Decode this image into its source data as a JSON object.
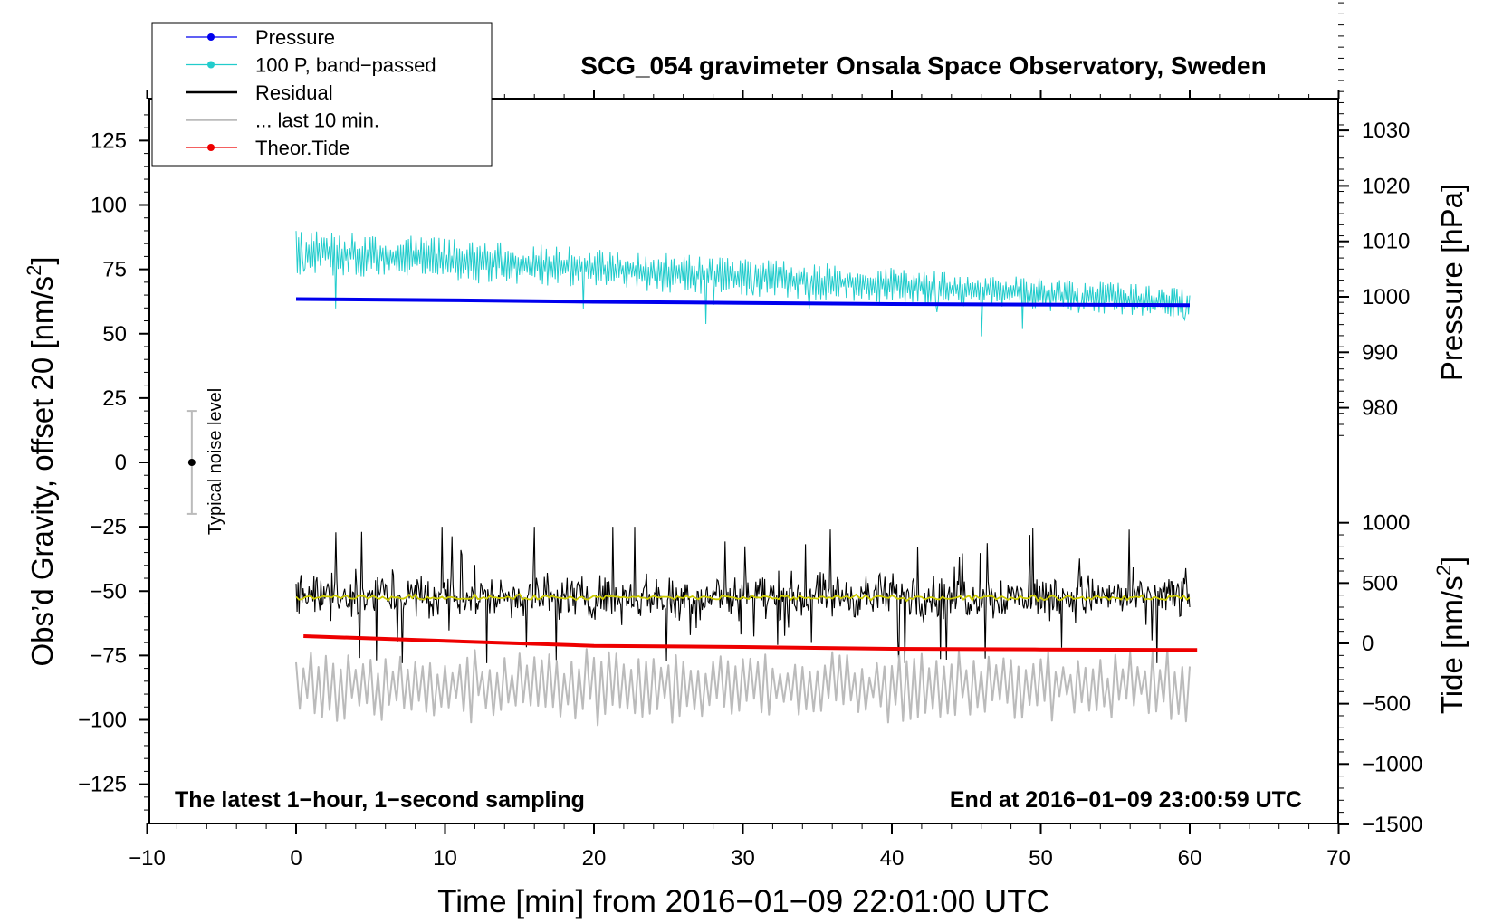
{
  "chart_data": {
    "type": "line",
    "title": "SCG_054 gravimeter Onsala Space Observatory, Sweden",
    "xlabel": "Time [min] from 2016−01−09 22:01:00 UTC",
    "ylabel_left": "Obs’d Gravity, offset 20 [nm/s",
    "ylabel_left_sup": "2",
    "ylabel_left_end": "]",
    "ylabel_right_pressure": "Pressure [hPa]",
    "ylabel_right_tide": "Tide [nm/s",
    "ylabel_right_tide_sup": "2",
    "ylabel_right_tide_end": "]",
    "annotation_left": "The latest 1−hour, 1−second sampling",
    "annotation_right": "End at 2016−01−09 23:00:59 UTC",
    "noise_label": "Typical noise level",
    "noise_bar": {
      "x": -7,
      "center": 0,
      "low": -20,
      "high": 20
    },
    "xlim": [
      -10,
      70
    ],
    "ylim_left": [
      -140,
      140
    ],
    "ylim_pressure_view": [
      973.6,
      1055.3
    ],
    "ylim_tide_view": [
      -1500,
      1500
    ],
    "x_ticks": [
      -10,
      0,
      10,
      20,
      30,
      40,
      50,
      60,
      70
    ],
    "x_tick_labels": [
      "−10",
      "0",
      "10",
      "20",
      "30",
      "40",
      "50",
      "60",
      "70"
    ],
    "y_left_ticks": [
      125,
      100,
      75,
      50,
      25,
      0,
      -25,
      -50,
      -75,
      -100,
      -125
    ],
    "y_left_tick_labels": [
      "125",
      "100",
      "75",
      "50",
      "25",
      "0",
      "−25",
      "−50",
      "−75",
      "−100",
      "−125"
    ],
    "y_pressure_ticks": [
      1030,
      1020,
      1010,
      1000,
      990,
      980
    ],
    "y_pressure_tick_labels": [
      "1030",
      "1020",
      "1010",
      "1000",
      "990",
      "980"
    ],
    "y_tide_ticks": [
      1000,
      500,
      0,
      -500,
      -1000,
      -1500
    ],
    "y_tide_tick_labels": [
      "1000",
      "500",
      "0",
      "−500",
      "−1000",
      "−1500"
    ],
    "legend": {
      "placement": "top-left",
      "entries": [
        {
          "label": "Pressure",
          "color": "#0000ee",
          "marker": true
        },
        {
          "label": "100 P, band−passed",
          "color": "#22cccc",
          "marker": true
        },
        {
          "label": "Residual",
          "color": "#000000",
          "marker": false
        },
        {
          "label": "... last 10 min.",
          "color": "#bbbbbb",
          "marker": false
        },
        {
          "label": "Theor.Tide",
          "color": "#ee0000",
          "marker": true
        }
      ]
    },
    "series": [
      {
        "name": "Pressure",
        "axis": "pressure",
        "color": "#0000ee",
        "x": [
          0,
          10,
          20,
          30,
          40,
          50,
          60
        ],
        "y": [
          999.6,
          999.4,
          999.1,
          998.9,
          998.7,
          998.6,
          998.5
        ]
      },
      {
        "name": "100 P, band-passed",
        "axis": "left",
        "color": "#22cccc",
        "x_start": 0,
        "x_end": 60,
        "mean_start": 82,
        "mean_end": 62,
        "amplitude_start": 9,
        "amplitude_end": 6,
        "min": 49,
        "max": 92
      },
      {
        "name": "Residual",
        "axis": "left",
        "color": "#000000",
        "x_start": 0,
        "x_end": 60,
        "mean": -52,
        "amplitude": 14,
        "min": -78,
        "max": -25
      },
      {
        "name": "Residual mean",
        "axis": "left",
        "color": "#cccc00",
        "x_start": 0,
        "x_end": 60,
        "mean": -52.5,
        "amplitude": 1.5
      },
      {
        "name": "... last 10 min.",
        "axis": "left",
        "color": "#bbbbbb",
        "x_start": 0,
        "x_end": 60,
        "mean": -87,
        "amplitude": 12,
        "min": -111,
        "max": -67
      },
      {
        "name": "Theor.Tide",
        "axis": "tide",
        "color": "#ee0000",
        "x": [
          0.5,
          10,
          20,
          30,
          40,
          50,
          60.5
        ],
        "y": [
          60,
          20,
          -20,
          -30,
          -45,
          -50,
          -55
        ]
      }
    ]
  }
}
